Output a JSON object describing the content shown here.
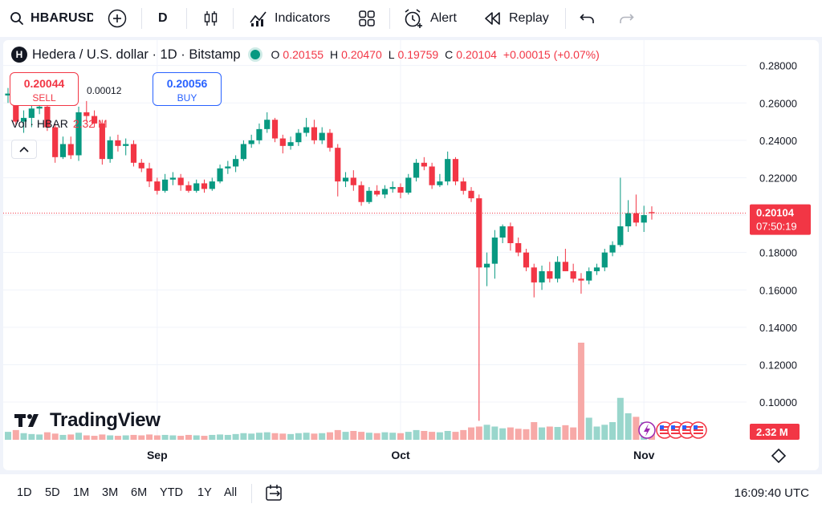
{
  "toolbar": {
    "symbol": "HBARUSD",
    "interval": "D",
    "indicators_label": "Indicators",
    "alert_label": "Alert",
    "replay_label": "Replay",
    "icons": [
      "search-icon",
      "add-symbol-icon",
      "candles-icon",
      "indicators-icon",
      "layouts-icon",
      "alert-icon",
      "replay-icon",
      "undo-icon",
      "redo-icon"
    ]
  },
  "legend": {
    "title": "Hedera / U.S. dollar · 1D · Bitstamp",
    "o_label": "O",
    "o_value": "0.20155",
    "h_label": "H",
    "h_value": "0.20470",
    "l_label": "L",
    "l_value": "0.19759",
    "c_label": "C",
    "c_value": "0.20104",
    "change": "+0.00015 (+0.07%)"
  },
  "trade": {
    "sell_price": "0.20044",
    "sell_label": "SELL",
    "spread": "0.00012",
    "buy_price": "0.20056",
    "buy_label": "BUY"
  },
  "volume_legend": {
    "label": "Vol · HBAR",
    "value": "2.32 M"
  },
  "branding": {
    "logo_text": "TradingView"
  },
  "bottom": {
    "ranges": [
      "1D",
      "5D",
      "1M",
      "3M",
      "6M",
      "YTD",
      "1Y",
      "All"
    ],
    "time": "16:09:40 UTC"
  },
  "colors": {
    "up": "#089981",
    "down": "#f23645",
    "up_vol": "#99d6cc",
    "down_vol": "#f7a9a7",
    "accent": "#2962ff"
  },
  "chart_data": {
    "type": "candlestick",
    "y_axis_ticks": [
      "0.28000",
      "0.26000",
      "0.24000",
      "0.22000",
      "0.20000",
      "0.18000",
      "0.16000",
      "0.14000",
      "0.12000",
      "0.10000"
    ],
    "ylim": [
      0.085,
      0.285
    ],
    "x_labels": [
      "Sep",
      "Oct",
      "Nov"
    ],
    "last_price_label": "0.20104",
    "countdown_label": "07:50:19",
    "volume_label": "2.32 M",
    "candles": [
      {
        "o": 0.264,
        "h": 0.268,
        "l": 0.26,
        "c": 0.265
      },
      {
        "o": 0.265,
        "h": 0.267,
        "l": 0.248,
        "c": 0.25
      },
      {
        "o": 0.25,
        "h": 0.256,
        "l": 0.244,
        "c": 0.252
      },
      {
        "o": 0.252,
        "h": 0.26,
        "l": 0.247,
        "c": 0.257
      },
      {
        "o": 0.257,
        "h": 0.261,
        "l": 0.254,
        "c": 0.258
      },
      {
        "o": 0.258,
        "h": 0.262,
        "l": 0.245,
        "c": 0.247
      },
      {
        "o": 0.247,
        "h": 0.249,
        "l": 0.228,
        "c": 0.231
      },
      {
        "o": 0.231,
        "h": 0.242,
        "l": 0.23,
        "c": 0.238
      },
      {
        "o": 0.238,
        "h": 0.242,
        "l": 0.23,
        "c": 0.232
      },
      {
        "o": 0.232,
        "h": 0.258,
        "l": 0.229,
        "c": 0.255
      },
      {
        "o": 0.255,
        "h": 0.261,
        "l": 0.25,
        "c": 0.253
      },
      {
        "o": 0.253,
        "h": 0.256,
        "l": 0.247,
        "c": 0.249
      },
      {
        "o": 0.249,
        "h": 0.251,
        "l": 0.227,
        "c": 0.23
      },
      {
        "o": 0.23,
        "h": 0.242,
        "l": 0.228,
        "c": 0.24
      },
      {
        "o": 0.24,
        "h": 0.243,
        "l": 0.234,
        "c": 0.237
      },
      {
        "o": 0.237,
        "h": 0.241,
        "l": 0.232,
        "c": 0.238
      },
      {
        "o": 0.238,
        "h": 0.24,
        "l": 0.226,
        "c": 0.228
      },
      {
        "o": 0.228,
        "h": 0.23,
        "l": 0.223,
        "c": 0.225
      },
      {
        "o": 0.225,
        "h": 0.228,
        "l": 0.215,
        "c": 0.218
      },
      {
        "o": 0.218,
        "h": 0.22,
        "l": 0.211,
        "c": 0.213
      },
      {
        "o": 0.213,
        "h": 0.222,
        "l": 0.212,
        "c": 0.219
      },
      {
        "o": 0.219,
        "h": 0.223,
        "l": 0.216,
        "c": 0.22
      },
      {
        "o": 0.22,
        "h": 0.222,
        "l": 0.213,
        "c": 0.216
      },
      {
        "o": 0.216,
        "h": 0.218,
        "l": 0.212,
        "c": 0.213
      },
      {
        "o": 0.213,
        "h": 0.219,
        "l": 0.212,
        "c": 0.217
      },
      {
        "o": 0.217,
        "h": 0.219,
        "l": 0.212,
        "c": 0.214
      },
      {
        "o": 0.214,
        "h": 0.22,
        "l": 0.213,
        "c": 0.218
      },
      {
        "o": 0.218,
        "h": 0.227,
        "l": 0.217,
        "c": 0.225
      },
      {
        "o": 0.225,
        "h": 0.229,
        "l": 0.222,
        "c": 0.226
      },
      {
        "o": 0.226,
        "h": 0.232,
        "l": 0.223,
        "c": 0.23
      },
      {
        "o": 0.23,
        "h": 0.24,
        "l": 0.229,
        "c": 0.238
      },
      {
        "o": 0.238,
        "h": 0.243,
        "l": 0.236,
        "c": 0.24
      },
      {
        "o": 0.24,
        "h": 0.249,
        "l": 0.238,
        "c": 0.246
      },
      {
        "o": 0.246,
        "h": 0.255,
        "l": 0.244,
        "c": 0.251
      },
      {
        "o": 0.251,
        "h": 0.252,
        "l": 0.239,
        "c": 0.241
      },
      {
        "o": 0.241,
        "h": 0.243,
        "l": 0.233,
        "c": 0.237
      },
      {
        "o": 0.237,
        "h": 0.242,
        "l": 0.235,
        "c": 0.239
      },
      {
        "o": 0.239,
        "h": 0.246,
        "l": 0.237,
        "c": 0.244
      },
      {
        "o": 0.244,
        "h": 0.252,
        "l": 0.242,
        "c": 0.247
      },
      {
        "o": 0.247,
        "h": 0.251,
        "l": 0.238,
        "c": 0.24
      },
      {
        "o": 0.24,
        "h": 0.247,
        "l": 0.238,
        "c": 0.244
      },
      {
        "o": 0.244,
        "h": 0.246,
        "l": 0.234,
        "c": 0.236
      },
      {
        "o": 0.236,
        "h": 0.238,
        "l": 0.21,
        "c": 0.218
      },
      {
        "o": 0.218,
        "h": 0.223,
        "l": 0.215,
        "c": 0.22
      },
      {
        "o": 0.22,
        "h": 0.224,
        "l": 0.213,
        "c": 0.216
      },
      {
        "o": 0.216,
        "h": 0.218,
        "l": 0.205,
        "c": 0.207
      },
      {
        "o": 0.207,
        "h": 0.215,
        "l": 0.206,
        "c": 0.213
      },
      {
        "o": 0.213,
        "h": 0.216,
        "l": 0.21,
        "c": 0.211
      },
      {
        "o": 0.211,
        "h": 0.216,
        "l": 0.209,
        "c": 0.214
      },
      {
        "o": 0.214,
        "h": 0.218,
        "l": 0.212,
        "c": 0.215
      },
      {
        "o": 0.215,
        "h": 0.217,
        "l": 0.209,
        "c": 0.212
      },
      {
        "o": 0.212,
        "h": 0.222,
        "l": 0.211,
        "c": 0.22
      },
      {
        "o": 0.22,
        "h": 0.23,
        "l": 0.218,
        "c": 0.228
      },
      {
        "o": 0.228,
        "h": 0.231,
        "l": 0.224,
        "c": 0.226
      },
      {
        "o": 0.226,
        "h": 0.228,
        "l": 0.214,
        "c": 0.216
      },
      {
        "o": 0.216,
        "h": 0.222,
        "l": 0.215,
        "c": 0.218
      },
      {
        "o": 0.218,
        "h": 0.234,
        "l": 0.216,
        "c": 0.23
      },
      {
        "o": 0.23,
        "h": 0.231,
        "l": 0.216,
        "c": 0.218
      },
      {
        "o": 0.218,
        "h": 0.22,
        "l": 0.211,
        "c": 0.213
      },
      {
        "o": 0.213,
        "h": 0.215,
        "l": 0.207,
        "c": 0.209
      },
      {
        "o": 0.209,
        "h": 0.211,
        "l": 0.09,
        "c": 0.172
      },
      {
        "o": 0.172,
        "h": 0.18,
        "l": 0.162,
        "c": 0.174
      },
      {
        "o": 0.174,
        "h": 0.192,
        "l": 0.166,
        "c": 0.188
      },
      {
        "o": 0.188,
        "h": 0.195,
        "l": 0.185,
        "c": 0.194
      },
      {
        "o": 0.194,
        "h": 0.196,
        "l": 0.181,
        "c": 0.185
      },
      {
        "o": 0.185,
        "h": 0.188,
        "l": 0.178,
        "c": 0.18
      },
      {
        "o": 0.18,
        "h": 0.182,
        "l": 0.17,
        "c": 0.172
      },
      {
        "o": 0.172,
        "h": 0.174,
        "l": 0.156,
        "c": 0.164
      },
      {
        "o": 0.164,
        "h": 0.173,
        "l": 0.16,
        "c": 0.17
      },
      {
        "o": 0.17,
        "h": 0.175,
        "l": 0.164,
        "c": 0.166
      },
      {
        "o": 0.166,
        "h": 0.178,
        "l": 0.164,
        "c": 0.175
      },
      {
        "o": 0.175,
        "h": 0.182,
        "l": 0.17,
        "c": 0.17
      },
      {
        "o": 0.17,
        "h": 0.174,
        "l": 0.164,
        "c": 0.166
      },
      {
        "o": 0.166,
        "h": 0.169,
        "l": 0.158,
        "c": 0.165
      },
      {
        "o": 0.165,
        "h": 0.172,
        "l": 0.163,
        "c": 0.17
      },
      {
        "o": 0.17,
        "h": 0.174,
        "l": 0.168,
        "c": 0.172
      },
      {
        "o": 0.172,
        "h": 0.182,
        "l": 0.17,
        "c": 0.18
      },
      {
        "o": 0.18,
        "h": 0.186,
        "l": 0.178,
        "c": 0.184
      },
      {
        "o": 0.184,
        "h": 0.22,
        "l": 0.183,
        "c": 0.194
      },
      {
        "o": 0.194,
        "h": 0.208,
        "l": 0.191,
        "c": 0.201
      },
      {
        "o": 0.201,
        "h": 0.211,
        "l": 0.194,
        "c": 0.196
      },
      {
        "o": 0.196,
        "h": 0.205,
        "l": 0.191,
        "c": 0.2
      },
      {
        "o": 0.2016,
        "h": 0.2047,
        "l": 0.1976,
        "c": 0.201
      }
    ],
    "volume_rel": [
      0.18,
      0.22,
      0.15,
      0.13,
      0.12,
      0.17,
      0.14,
      0.11,
      0.12,
      0.16,
      0.1,
      0.09,
      0.12,
      0.1,
      0.09,
      0.1,
      0.11,
      0.1,
      0.12,
      0.1,
      0.11,
      0.1,
      0.09,
      0.11,
      0.1,
      0.09,
      0.11,
      0.12,
      0.11,
      0.13,
      0.15,
      0.14,
      0.16,
      0.17,
      0.15,
      0.14,
      0.13,
      0.15,
      0.16,
      0.14,
      0.15,
      0.17,
      0.22,
      0.18,
      0.2,
      0.18,
      0.16,
      0.15,
      0.17,
      0.16,
      0.15,
      0.18,
      0.22,
      0.2,
      0.18,
      0.17,
      0.2,
      0.18,
      0.22,
      0.28,
      0.3,
      0.34,
      0.3,
      0.26,
      0.28,
      0.25,
      0.24,
      0.4,
      0.28,
      0.3,
      0.29,
      0.33,
      0.28,
      2.2,
      0.5,
      0.3,
      0.34,
      0.4,
      0.95,
      0.6,
      0.52,
      0.4,
      0.22
    ]
  }
}
